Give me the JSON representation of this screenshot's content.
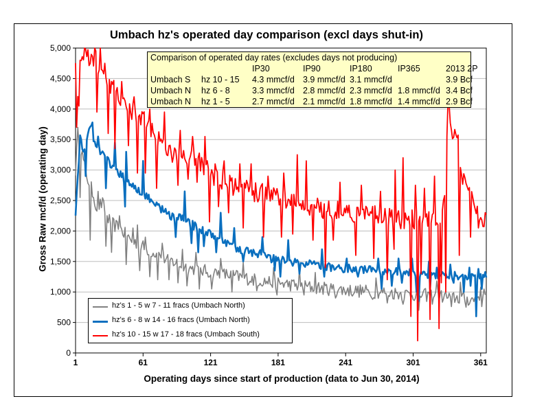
{
  "chart_data": {
    "type": "line",
    "title": "Umbach hz's operated  day comparison (excl days shut-in)",
    "xlabel": "Operating days since start of production (data to Jun 30, 2014)",
    "ylabel": "Gross Raw mcf/d (operating day)",
    "xlim": [
      1,
      366
    ],
    "ylim": [
      0,
      5000
    ],
    "x_ticks": [
      1,
      61,
      121,
      181,
      241,
      301,
      361
    ],
    "x_tick_labels": [
      "1",
      "61",
      "121",
      "181",
      "241",
      "301",
      "361"
    ],
    "y_ticks": [
      0,
      500,
      1000,
      1500,
      2000,
      2500,
      3000,
      3500,
      4000,
      4500,
      5000
    ],
    "y_tick_labels": [
      "0",
      "500",
      "1,000",
      "1,500",
      "2,000",
      "2,500",
      "3,000",
      "3,500",
      "4,000",
      "4,500",
      "5,000"
    ],
    "grid": "horizontal",
    "legend_position": "bottom-left",
    "series": [
      {
        "name": "hz's 1 - 5 w 7 - 11 fracs (Umbach North)",
        "color": "#808080",
        "x_max": 365,
        "anchors": [
          [
            1,
            3000
          ],
          [
            3,
            3600
          ],
          [
            6,
            3350
          ],
          [
            10,
            2950
          ],
          [
            15,
            2700
          ],
          [
            20,
            2400
          ],
          [
            25,
            2450
          ],
          [
            30,
            2200
          ],
          [
            35,
            2100
          ],
          [
            40,
            2050
          ],
          [
            50,
            1850
          ],
          [
            60,
            1750
          ],
          [
            70,
            1650
          ],
          [
            80,
            1550
          ],
          [
            90,
            1480
          ],
          [
            100,
            1400
          ],
          [
            120,
            1330
          ],
          [
            140,
            1270
          ],
          [
            160,
            1200
          ],
          [
            180,
            1150
          ],
          [
            200,
            1100
          ],
          [
            220,
            1060
          ],
          [
            240,
            1030
          ],
          [
            260,
            1010
          ],
          [
            280,
            990
          ],
          [
            300,
            960
          ],
          [
            320,
            940
          ],
          [
            340,
            900
          ],
          [
            355,
            870
          ],
          [
            365,
            1050
          ]
        ],
        "noise": 110,
        "dips": [
          [
            5,
            2550
          ],
          [
            14,
            1850
          ],
          [
            19,
            2350
          ],
          [
            28,
            1750
          ],
          [
            33,
            1650
          ],
          [
            46,
            1450
          ],
          [
            58,
            1350
          ],
          [
            67,
            1250
          ],
          [
            74,
            1200
          ],
          [
            84,
            1200
          ],
          [
            92,
            1150
          ],
          [
            100,
            1100
          ],
          [
            111,
            1050
          ],
          [
            122,
            1050
          ],
          [
            140,
            1000
          ],
          [
            162,
            1020
          ],
          [
            180,
            950
          ],
          [
            204,
            950
          ],
          [
            232,
            900
          ],
          [
            265,
            880
          ],
          [
            278,
            820
          ],
          [
            292,
            800
          ],
          [
            306,
            700
          ],
          [
            318,
            800
          ],
          [
            335,
            760
          ],
          [
            348,
            750
          ],
          [
            357,
            800
          ],
          [
            362,
            760
          ]
        ],
        "spikes": [
          [
            21,
            2650
          ],
          [
            40,
            2250
          ],
          [
            52,
            2050
          ],
          [
            56,
            2100
          ],
          [
            63,
            1900
          ],
          [
            78,
            1800
          ],
          [
            96,
            1700
          ],
          [
            108,
            1650
          ],
          [
            130,
            1550
          ],
          [
            150,
            1480
          ],
          [
            177,
            1400
          ],
          [
            200,
            1380
          ],
          [
            214,
            1320
          ],
          [
            268,
            1230
          ],
          [
            322,
            1180
          ],
          [
            343,
            1160
          ]
        ]
      },
      {
        "name": "hz's 6 - 8 w 14 - 16 fracs (Umbach North)",
        "color": "#0a6fbf",
        "x_max": 366,
        "anchors": [
          [
            1,
            2300
          ],
          [
            3,
            2900
          ],
          [
            5,
            3500
          ],
          [
            8,
            3300
          ],
          [
            12,
            3600
          ],
          [
            15,
            3750
          ],
          [
            18,
            3400
          ],
          [
            22,
            3350
          ],
          [
            28,
            3200
          ],
          [
            35,
            3000
          ],
          [
            45,
            2850
          ],
          [
            55,
            2700
          ],
          [
            65,
            2550
          ],
          [
            75,
            2400
          ],
          [
            85,
            2250
          ],
          [
            95,
            2200
          ],
          [
            105,
            2100
          ],
          [
            115,
            2000
          ],
          [
            125,
            1900
          ],
          [
            135,
            1800
          ],
          [
            145,
            1700
          ],
          [
            160,
            1650
          ],
          [
            175,
            1550
          ],
          [
            190,
            1500
          ],
          [
            210,
            1450
          ],
          [
            230,
            1400
          ],
          [
            250,
            1380
          ],
          [
            270,
            1350
          ],
          [
            290,
            1330
          ],
          [
            310,
            1300
          ],
          [
            330,
            1280
          ],
          [
            350,
            1260
          ],
          [
            366,
            1270
          ]
        ],
        "noise": 70,
        "dips": [
          [
            10,
            2900
          ],
          [
            28,
            2700
          ],
          [
            45,
            2400
          ],
          [
            90,
            1900
          ],
          [
            104,
            1800
          ],
          [
            110,
            1650
          ],
          [
            115,
            1750
          ],
          [
            126,
            1650
          ],
          [
            150,
            1500
          ],
          [
            178,
            1350
          ],
          [
            183,
            1250
          ],
          [
            200,
            1300
          ],
          [
            222,
            1250
          ],
          [
            252,
            1250
          ],
          [
            273,
            1050
          ],
          [
            282,
            1100
          ],
          [
            291,
            1150
          ],
          [
            304,
            1000
          ],
          [
            306,
            850
          ],
          [
            316,
            1050
          ],
          [
            337,
            1150
          ],
          [
            346,
            1000
          ],
          [
            352,
            1100
          ],
          [
            357,
            600
          ],
          [
            362,
            1050
          ]
        ],
        "spikes": [
          [
            16,
            3780
          ],
          [
            21,
            3550
          ],
          [
            36,
            3450
          ],
          [
            46,
            3300
          ],
          [
            61,
            3150
          ],
          [
            98,
            2650
          ],
          [
            130,
            2300
          ],
          [
            142,
            2050
          ],
          [
            167,
            1900
          ],
          [
            190,
            1850
          ],
          [
            220,
            1700
          ],
          [
            242,
            1550
          ],
          [
            270,
            1550
          ],
          [
            288,
            1550
          ],
          [
            300,
            1550
          ],
          [
            315,
            1500
          ],
          [
            322,
            1400
          ],
          [
            334,
            1450
          ],
          [
            351,
            1400
          ],
          [
            359,
            1380
          ]
        ]
      },
      {
        "name": "hz's 10 - 15 w 17 - 18 fracs (Umbach South)",
        "color": "#ff0000",
        "x_max": 366,
        "anchors": [
          [
            1,
            4850
          ],
          [
            3,
            4300
          ],
          [
            6,
            4650
          ],
          [
            10,
            5000
          ],
          [
            14,
            4800
          ],
          [
            18,
            4900
          ],
          [
            22,
            4700
          ],
          [
            26,
            4600
          ],
          [
            30,
            4500
          ],
          [
            35,
            4300
          ],
          [
            40,
            4150
          ],
          [
            45,
            4050
          ],
          [
            55,
            3900
          ],
          [
            65,
            3750
          ],
          [
            75,
            3500
          ],
          [
            85,
            3300
          ],
          [
            100,
            3250
          ],
          [
            110,
            3150
          ],
          [
            120,
            2950
          ],
          [
            130,
            2850
          ],
          [
            140,
            2750
          ],
          [
            150,
            2700
          ],
          [
            160,
            2650
          ],
          [
            170,
            2600
          ],
          [
            180,
            2550
          ],
          [
            195,
            2450
          ],
          [
            210,
            2400
          ],
          [
            230,
            2350
          ],
          [
            250,
            2300
          ],
          [
            265,
            2250
          ],
          [
            280,
            2200
          ],
          [
            295,
            2200
          ],
          [
            305,
            2150
          ],
          [
            320,
            2150
          ],
          [
            328,
            2350
          ],
          [
            333,
            4100
          ],
          [
            336,
            3600
          ],
          [
            340,
            3600
          ],
          [
            345,
            2800
          ],
          [
            350,
            2700
          ],
          [
            356,
            2350
          ],
          [
            360,
            2250
          ],
          [
            366,
            2200
          ]
        ],
        "noise": 170,
        "dips": [
          [
            2,
            3700
          ],
          [
            4,
            4050
          ],
          [
            20,
            3950
          ],
          [
            30,
            3600
          ],
          [
            36,
            3350
          ],
          [
            48,
            3400
          ],
          [
            56,
            2950
          ],
          [
            63,
            2950
          ],
          [
            73,
            2700
          ],
          [
            92,
            2750
          ],
          [
            101,
            2850
          ],
          [
            109,
            2800
          ],
          [
            120,
            2150
          ],
          [
            128,
            2400
          ],
          [
            137,
            2300
          ],
          [
            150,
            2050
          ],
          [
            168,
            1900
          ],
          [
            184,
            1900
          ],
          [
            194,
            1950
          ],
          [
            212,
            1850
          ],
          [
            223,
            1400
          ],
          [
            230,
            1850
          ],
          [
            250,
            1600
          ],
          [
            266,
            1550
          ],
          [
            278,
            1200
          ],
          [
            284,
            1700
          ],
          [
            292,
            1700
          ],
          [
            299,
            600
          ],
          [
            305,
            200
          ],
          [
            308,
            1300
          ],
          [
            316,
            550
          ],
          [
            324,
            400
          ],
          [
            326,
            1150
          ],
          [
            330,
            1000
          ],
          [
            342,
            1600
          ],
          [
            352,
            1900
          ],
          [
            359,
            2050
          ]
        ],
        "spikes": [
          [
            5,
            4800
          ],
          [
            9,
            5000
          ],
          [
            23,
            5000
          ],
          [
            27,
            4750
          ],
          [
            42,
            4450
          ],
          [
            53,
            4200
          ],
          [
            67,
            4000
          ],
          [
            80,
            3950
          ],
          [
            94,
            3650
          ],
          [
            105,
            3550
          ],
          [
            116,
            3550
          ],
          [
            125,
            3100
          ],
          [
            133,
            3150
          ],
          [
            147,
            3100
          ],
          [
            157,
            3100
          ],
          [
            172,
            2900
          ],
          [
            186,
            2950
          ],
          [
            198,
            3250
          ],
          [
            206,
            3150
          ],
          [
            236,
            2800
          ],
          [
            255,
            2750
          ],
          [
            272,
            2650
          ],
          [
            285,
            3000
          ],
          [
            292,
            3200
          ],
          [
            303,
            2750
          ],
          [
            311,
            2700
          ],
          [
            320,
            2900
          ],
          [
            332,
            4150
          ]
        ]
      }
    ]
  },
  "info_box": {
    "title": "Comparison of operated day rates (excludes days not producing)",
    "header": [
      "",
      "",
      "IP30",
      "IP90",
      "IP180",
      "IP365",
      "2013 2P"
    ],
    "rows": [
      [
        "Umbach S",
        "hz 10 - 15",
        "4.3 mmcf/d",
        "3.9 mmcf/d",
        "3.1 mmcf/d",
        "",
        "3.9 Bcf"
      ],
      [
        "Umbach N",
        "hz  6 - 8",
        "3.3 mmcf/d",
        "2.8 mmcf/d",
        "2.3 mmcf/d",
        "1.8 mmcf/d",
        "3.4 Bcf"
      ],
      [
        "Umbach N",
        "hz 1 - 5",
        "2.7 mmcf/d",
        "2.1 mmcf/d",
        "1.8 mmcf/d",
        "1.4 mmcf/d",
        "2.9 Bcf"
      ]
    ],
    "background": "#ffffc6"
  }
}
